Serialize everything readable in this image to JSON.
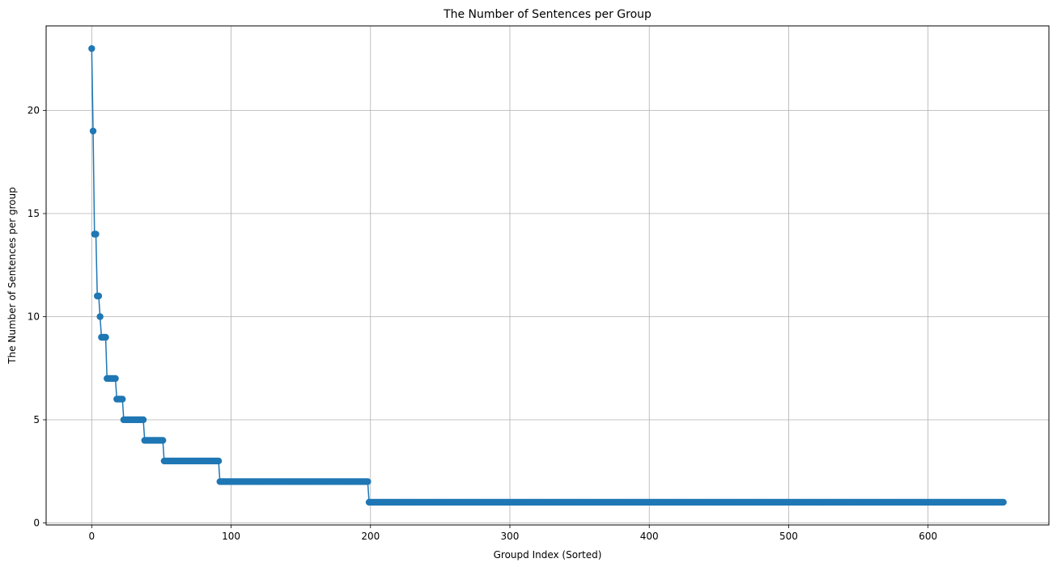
{
  "chart_data": {
    "type": "line",
    "title": "The Number of Sentences per Group",
    "xlabel": "Groupd Index (Sorted)",
    "ylabel": "The Number of Sentences per group",
    "xlim": [
      -32.7,
      686.7
    ],
    "ylim": [
      -0.1,
      24.1
    ],
    "xticks": [
      0,
      100,
      200,
      300,
      400,
      500,
      600
    ],
    "yticks": [
      0,
      5,
      10,
      15,
      20
    ],
    "grid": true,
    "marker": "circle",
    "color": "#1f77b4",
    "series": [
      {
        "runs": [
          {
            "value": 23,
            "from": 0,
            "to": 0
          },
          {
            "value": 19,
            "from": 1,
            "to": 1
          },
          {
            "value": 14,
            "from": 2,
            "to": 3
          },
          {
            "value": 11,
            "from": 4,
            "to": 5
          },
          {
            "value": 10,
            "from": 6,
            "to": 6
          },
          {
            "value": 9,
            "from": 7,
            "to": 10
          },
          {
            "value": 7,
            "from": 11,
            "to": 17
          },
          {
            "value": 6,
            "from": 18,
            "to": 22
          },
          {
            "value": 5,
            "from": 23,
            "to": 37
          },
          {
            "value": 4,
            "from": 38,
            "to": 51
          },
          {
            "value": 3,
            "from": 52,
            "to": 91
          },
          {
            "value": 2,
            "from": 92,
            "to": 198
          },
          {
            "value": 1,
            "from": 199,
            "to": 654
          }
        ]
      }
    ]
  }
}
